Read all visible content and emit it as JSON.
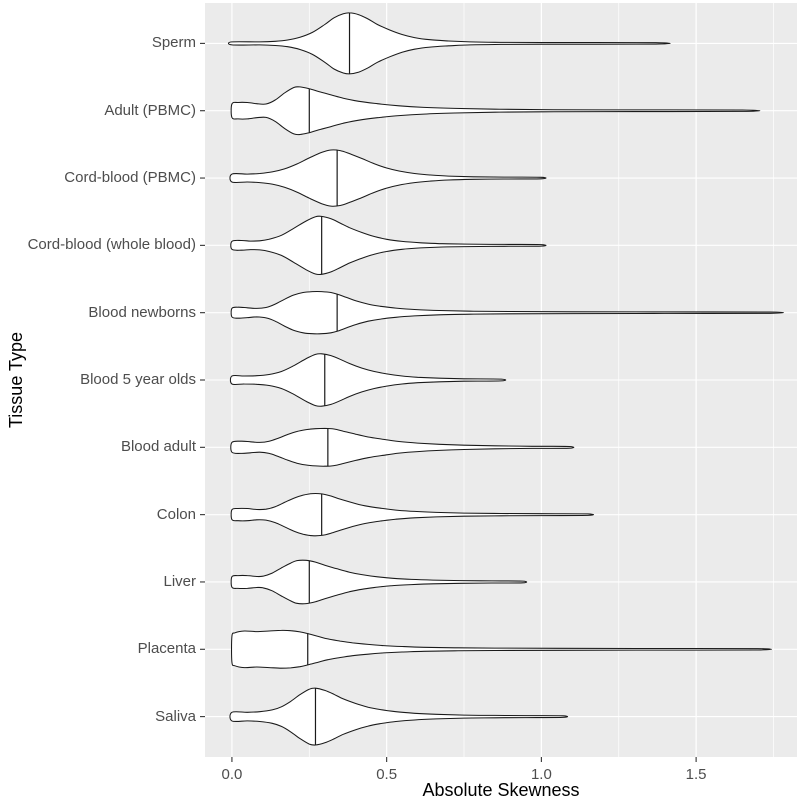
{
  "style": {
    "panel_bg": "#EBEBEB",
    "grid_color": "#FFFFFF",
    "violin_fill": "#FFFFFF",
    "violin_stroke": "#1A1A1A",
    "tick_color": "#333333",
    "tick_label_color": "#4D4D4D",
    "axis_title_color": "#000000"
  },
  "chart_data": {
    "type": "violin",
    "orientation": "horizontal",
    "title": "",
    "xlabel": "Absolute Skewness",
    "ylabel": "Tissue Type",
    "xlim": [
      -0.087,
      1.826
    ],
    "x_tick_values": [
      0.0,
      0.5,
      1.0,
      1.5
    ],
    "x_tick_labels": [
      "0.0",
      "0.5",
      "1.0",
      "1.5"
    ],
    "x_minor_tick_values": [
      0.25,
      0.75,
      1.25,
      1.75
    ],
    "grid": true,
    "legend": false,
    "categories_top_to_bottom": [
      "Sperm",
      "Adult (PBMC)",
      "Cord-blood (PBMC)",
      "Cord-blood (whole blood)",
      "Blood newborns",
      "Blood 5 year olds",
      "Blood adult",
      "Colon",
      "Liver",
      "Placenta",
      "Saliva"
    ],
    "violins": [
      {
        "label": "Sperm",
        "min": 0.0,
        "median": 0.38,
        "max": 1.37,
        "mode": 0.38,
        "profile": [
          [
            0,
            0.05
          ],
          [
            0.09,
            0.05
          ],
          [
            0.14,
            0.07
          ],
          [
            0.18,
            0.11
          ],
          [
            0.22,
            0.2
          ],
          [
            0.26,
            0.36
          ],
          [
            0.3,
            0.62
          ],
          [
            0.33,
            0.84
          ],
          [
            0.36,
            0.97
          ],
          [
            0.38,
            1.0
          ],
          [
            0.41,
            0.94
          ],
          [
            0.44,
            0.8
          ],
          [
            0.47,
            0.62
          ],
          [
            0.51,
            0.44
          ],
          [
            0.55,
            0.29
          ],
          [
            0.59,
            0.19
          ],
          [
            0.64,
            0.12
          ],
          [
            0.7,
            0.08
          ],
          [
            0.77,
            0.05
          ],
          [
            0.85,
            0.035
          ],
          [
            1.0,
            0.028
          ],
          [
            1.37,
            0.022
          ]
        ]
      },
      {
        "label": "Adult (PBMC)",
        "min": 0.0,
        "median": 0.25,
        "max": 1.65,
        "mode": 0.21,
        "profile": [
          [
            0,
            0.22
          ],
          [
            0.02,
            0.27
          ],
          [
            0.05,
            0.27
          ],
          [
            0.08,
            0.23
          ],
          [
            0.11,
            0.22
          ],
          [
            0.14,
            0.35
          ],
          [
            0.17,
            0.58
          ],
          [
            0.2,
            0.76
          ],
          [
            0.22,
            0.78
          ],
          [
            0.25,
            0.72
          ],
          [
            0.28,
            0.63
          ],
          [
            0.32,
            0.52
          ],
          [
            0.36,
            0.41
          ],
          [
            0.41,
            0.31
          ],
          [
            0.47,
            0.23
          ],
          [
            0.54,
            0.16
          ],
          [
            0.62,
            0.11
          ],
          [
            0.72,
            0.075
          ],
          [
            0.85,
            0.05
          ],
          [
            1.0,
            0.035
          ],
          [
            1.2,
            0.028
          ],
          [
            1.65,
            0.022
          ]
        ]
      },
      {
        "label": "Cord-blood (PBMC)",
        "min": 0.0,
        "median": 0.34,
        "max": 1.0,
        "mode": 0.32,
        "profile": [
          [
            0,
            0.13
          ],
          [
            0.05,
            0.13
          ],
          [
            0.09,
            0.15
          ],
          [
            0.13,
            0.2
          ],
          [
            0.17,
            0.3
          ],
          [
            0.21,
            0.46
          ],
          [
            0.25,
            0.66
          ],
          [
            0.29,
            0.84
          ],
          [
            0.32,
            0.92
          ],
          [
            0.35,
            0.9
          ],
          [
            0.38,
            0.8
          ],
          [
            0.42,
            0.64
          ],
          [
            0.46,
            0.47
          ],
          [
            0.5,
            0.33
          ],
          [
            0.54,
            0.23
          ],
          [
            0.59,
            0.15
          ],
          [
            0.64,
            0.1
          ],
          [
            0.7,
            0.065
          ],
          [
            0.78,
            0.042
          ],
          [
            0.88,
            0.03
          ],
          [
            1.0,
            0.024
          ]
        ]
      },
      {
        "label": "Cord-blood (whole blood)",
        "min": 0.0,
        "median": 0.29,
        "max": 1.0,
        "mode": 0.28,
        "profile": [
          [
            0,
            0.13
          ],
          [
            0.03,
            0.16
          ],
          [
            0.06,
            0.14
          ],
          [
            0.09,
            0.15
          ],
          [
            0.12,
            0.2
          ],
          [
            0.16,
            0.33
          ],
          [
            0.2,
            0.56
          ],
          [
            0.24,
            0.8
          ],
          [
            0.27,
            0.94
          ],
          [
            0.29,
            0.95
          ],
          [
            0.32,
            0.87
          ],
          [
            0.35,
            0.73
          ],
          [
            0.38,
            0.58
          ],
          [
            0.42,
            0.42
          ],
          [
            0.46,
            0.29
          ],
          [
            0.5,
            0.2
          ],
          [
            0.55,
            0.13
          ],
          [
            0.61,
            0.085
          ],
          [
            0.68,
            0.055
          ],
          [
            0.76,
            0.04
          ],
          [
            0.88,
            0.03
          ],
          [
            1.0,
            0.024
          ]
        ]
      },
      {
        "label": "Blood newborns",
        "min": 0.0,
        "median": 0.34,
        "max": 1.74,
        "mode": 0.28,
        "profile": [
          [
            0,
            0.14
          ],
          [
            0.02,
            0.18
          ],
          [
            0.05,
            0.16
          ],
          [
            0.08,
            0.14
          ],
          [
            0.11,
            0.17
          ],
          [
            0.14,
            0.28
          ],
          [
            0.17,
            0.44
          ],
          [
            0.2,
            0.58
          ],
          [
            0.23,
            0.66
          ],
          [
            0.26,
            0.69
          ],
          [
            0.29,
            0.69
          ],
          [
            0.32,
            0.66
          ],
          [
            0.34,
            0.61
          ],
          [
            0.37,
            0.5
          ],
          [
            0.4,
            0.39
          ],
          [
            0.44,
            0.28
          ],
          [
            0.48,
            0.21
          ],
          [
            0.53,
            0.15
          ],
          [
            0.59,
            0.105
          ],
          [
            0.67,
            0.07
          ],
          [
            0.77,
            0.05
          ],
          [
            0.9,
            0.038
          ],
          [
            1.1,
            0.03
          ],
          [
            1.4,
            0.025
          ],
          [
            1.74,
            0.022
          ]
        ]
      },
      {
        "label": "Blood 5 year olds",
        "min": 0.0,
        "median": 0.3,
        "max": 0.87,
        "mode": 0.29,
        "profile": [
          [
            0,
            0.13
          ],
          [
            0.04,
            0.13
          ],
          [
            0.08,
            0.14
          ],
          [
            0.12,
            0.18
          ],
          [
            0.16,
            0.28
          ],
          [
            0.2,
            0.47
          ],
          [
            0.24,
            0.7
          ],
          [
            0.27,
            0.84
          ],
          [
            0.29,
            0.86
          ],
          [
            0.32,
            0.8
          ],
          [
            0.35,
            0.68
          ],
          [
            0.38,
            0.54
          ],
          [
            0.42,
            0.39
          ],
          [
            0.46,
            0.28
          ],
          [
            0.5,
            0.2
          ],
          [
            0.55,
            0.13
          ],
          [
            0.6,
            0.09
          ],
          [
            0.67,
            0.06
          ],
          [
            0.75,
            0.04
          ],
          [
            0.87,
            0.028
          ]
        ]
      },
      {
        "label": "Blood adult",
        "min": 0.0,
        "median": 0.31,
        "max": 1.09,
        "mode": 0.3,
        "profile": [
          [
            0,
            0.16
          ],
          [
            0.03,
            0.2
          ],
          [
            0.06,
            0.18
          ],
          [
            0.09,
            0.16
          ],
          [
            0.12,
            0.2
          ],
          [
            0.15,
            0.3
          ],
          [
            0.18,
            0.42
          ],
          [
            0.21,
            0.52
          ],
          [
            0.24,
            0.58
          ],
          [
            0.27,
            0.61
          ],
          [
            0.3,
            0.62
          ],
          [
            0.33,
            0.6
          ],
          [
            0.36,
            0.53
          ],
          [
            0.4,
            0.43
          ],
          [
            0.44,
            0.34
          ],
          [
            0.49,
            0.26
          ],
          [
            0.54,
            0.19
          ],
          [
            0.6,
            0.14
          ],
          [
            0.67,
            0.1
          ],
          [
            0.75,
            0.07
          ],
          [
            0.85,
            0.05
          ],
          [
            0.97,
            0.035
          ],
          [
            1.09,
            0.028
          ]
        ]
      },
      {
        "label": "Colon",
        "min": 0.0,
        "median": 0.29,
        "max": 1.15,
        "mode": 0.26,
        "profile": [
          [
            0,
            0.16
          ],
          [
            0.02,
            0.2
          ],
          [
            0.05,
            0.2
          ],
          [
            0.08,
            0.17
          ],
          [
            0.11,
            0.18
          ],
          [
            0.14,
            0.26
          ],
          [
            0.17,
            0.4
          ],
          [
            0.2,
            0.54
          ],
          [
            0.23,
            0.64
          ],
          [
            0.26,
            0.69
          ],
          [
            0.29,
            0.68
          ],
          [
            0.32,
            0.61
          ],
          [
            0.35,
            0.51
          ],
          [
            0.39,
            0.39
          ],
          [
            0.43,
            0.29
          ],
          [
            0.48,
            0.21
          ],
          [
            0.53,
            0.15
          ],
          [
            0.59,
            0.105
          ],
          [
            0.66,
            0.075
          ],
          [
            0.75,
            0.052
          ],
          [
            0.87,
            0.038
          ],
          [
            1.0,
            0.03
          ],
          [
            1.15,
            0.024
          ]
        ]
      },
      {
        "label": "Liver",
        "min": 0.0,
        "median": 0.25,
        "max": 0.94,
        "mode": 0.22,
        "profile": [
          [
            0,
            0.17
          ],
          [
            0.02,
            0.21
          ],
          [
            0.05,
            0.21
          ],
          [
            0.08,
            0.18
          ],
          [
            0.1,
            0.19
          ],
          [
            0.13,
            0.29
          ],
          [
            0.16,
            0.46
          ],
          [
            0.19,
            0.62
          ],
          [
            0.21,
            0.7
          ],
          [
            0.24,
            0.71
          ],
          [
            0.27,
            0.65
          ],
          [
            0.3,
            0.55
          ],
          [
            0.34,
            0.43
          ],
          [
            0.38,
            0.32
          ],
          [
            0.42,
            0.24
          ],
          [
            0.47,
            0.17
          ],
          [
            0.52,
            0.12
          ],
          [
            0.58,
            0.085
          ],
          [
            0.65,
            0.06
          ],
          [
            0.74,
            0.045
          ],
          [
            0.84,
            0.035
          ],
          [
            0.94,
            0.028
          ]
        ]
      },
      {
        "label": "Placenta",
        "min": 0.0,
        "median": 0.245,
        "max": 1.7,
        "mode": 0.16,
        "profile": [
          [
            0,
            0.42
          ],
          [
            0.01,
            0.54
          ],
          [
            0.04,
            0.6
          ],
          [
            0.08,
            0.58
          ],
          [
            0.12,
            0.6
          ],
          [
            0.16,
            0.62
          ],
          [
            0.19,
            0.61
          ],
          [
            0.22,
            0.57
          ],
          [
            0.25,
            0.5
          ],
          [
            0.28,
            0.42
          ],
          [
            0.31,
            0.34
          ],
          [
            0.35,
            0.27
          ],
          [
            0.39,
            0.21
          ],
          [
            0.44,
            0.16
          ],
          [
            0.49,
            0.12
          ],
          [
            0.55,
            0.09
          ],
          [
            0.62,
            0.065
          ],
          [
            0.72,
            0.05
          ],
          [
            0.85,
            0.04
          ],
          [
            1.05,
            0.032
          ],
          [
            1.35,
            0.027
          ],
          [
            1.7,
            0.022
          ]
        ]
      },
      {
        "label": "Saliva",
        "min": 0.0,
        "median": 0.27,
        "max": 1.07,
        "mode": 0.26,
        "profile": [
          [
            0,
            0.14
          ],
          [
            0.05,
            0.14
          ],
          [
            0.09,
            0.16
          ],
          [
            0.13,
            0.22
          ],
          [
            0.16,
            0.32
          ],
          [
            0.19,
            0.5
          ],
          [
            0.22,
            0.72
          ],
          [
            0.25,
            0.9
          ],
          [
            0.27,
            0.93
          ],
          [
            0.3,
            0.86
          ],
          [
            0.33,
            0.73
          ],
          [
            0.36,
            0.58
          ],
          [
            0.4,
            0.43
          ],
          [
            0.44,
            0.31
          ],
          [
            0.48,
            0.23
          ],
          [
            0.53,
            0.16
          ],
          [
            0.59,
            0.11
          ],
          [
            0.66,
            0.075
          ],
          [
            0.75,
            0.05
          ],
          [
            0.85,
            0.038
          ],
          [
            0.95,
            0.032
          ],
          [
            1.07,
            0.025
          ]
        ]
      }
    ]
  }
}
